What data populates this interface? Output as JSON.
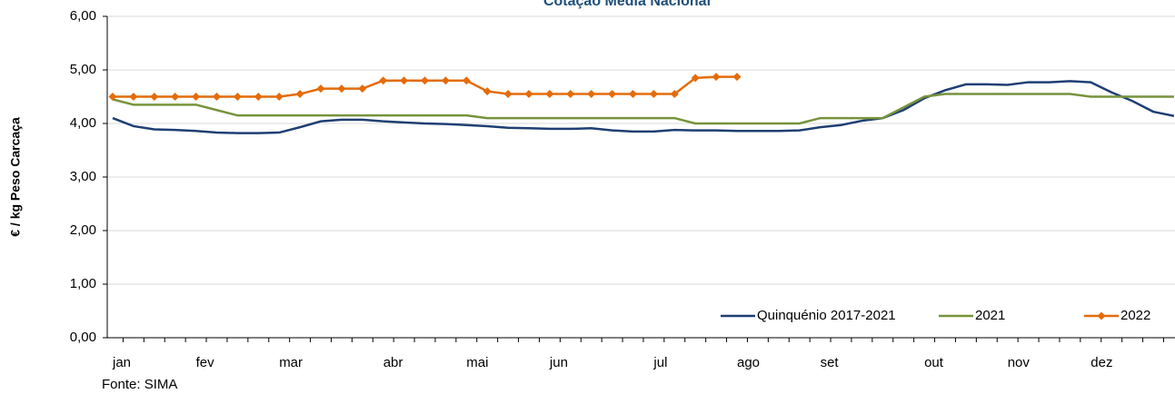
{
  "chart_data": {
    "type": "line",
    "title": "Cotação Média Nacional",
    "ylabel": "€ / kg Peso Carcaça",
    "source": "Fonte: SIMA",
    "categories": [
      "jan",
      null,
      null,
      null,
      "fev",
      null,
      null,
      null,
      "mar",
      null,
      null,
      null,
      null,
      "abr",
      null,
      null,
      null,
      "mai",
      null,
      null,
      null,
      "jun",
      null,
      null,
      null,
      null,
      "jul",
      null,
      null,
      null,
      "ago",
      null,
      null,
      null,
      "set",
      null,
      null,
      null,
      null,
      "out",
      null,
      null,
      null,
      "nov",
      null,
      null,
      null,
      "dez",
      null,
      null,
      null,
      null
    ],
    "series": [
      {
        "name": "Quinquénio 2017-2021",
        "color": "#1f3f73",
        "values": [
          4.1,
          3.95,
          3.89,
          3.88,
          3.86,
          3.83,
          3.82,
          3.82,
          3.83,
          3.93,
          4.04,
          4.07,
          4.07,
          4.04,
          4.02,
          4.0,
          3.99,
          3.97,
          3.95,
          3.92,
          3.91,
          3.9,
          3.9,
          3.91,
          3.87,
          3.85,
          3.85,
          3.88,
          3.87,
          3.87,
          3.86,
          3.86,
          3.86,
          3.87,
          3.93,
          3.97,
          4.05,
          4.1,
          4.25,
          4.47,
          4.62,
          4.73,
          4.73,
          4.72,
          4.77,
          4.77,
          4.79,
          4.77,
          4.58,
          4.42,
          4.22,
          4.14
        ]
      },
      {
        "name": "2021",
        "color": "#77933c",
        "values": [
          4.45,
          4.35,
          4.35,
          4.35,
          4.35,
          4.25,
          4.15,
          4.15,
          4.15,
          4.15,
          4.15,
          4.15,
          4.15,
          4.15,
          4.15,
          4.15,
          4.15,
          4.15,
          4.1,
          4.1,
          4.1,
          4.1,
          4.1,
          4.1,
          4.1,
          4.1,
          4.1,
          4.1,
          4.0,
          4.0,
          4.0,
          4.0,
          4.0,
          4.0,
          4.1,
          4.1,
          4.1,
          4.1,
          4.3,
          4.5,
          4.55,
          4.55,
          4.55,
          4.55,
          4.55,
          4.55,
          4.55,
          4.5,
          4.5,
          4.5,
          4.5,
          4.5
        ]
      },
      {
        "name": "2022",
        "color": "#e46c0a",
        "marker": "diamond",
        "values": [
          4.5,
          4.5,
          4.5,
          4.5,
          4.5,
          4.5,
          4.5,
          4.5,
          4.5,
          4.55,
          4.65,
          4.65,
          4.65,
          4.8,
          4.8,
          4.8,
          4.8,
          4.8,
          4.6,
          4.55,
          4.55,
          4.55,
          4.55,
          4.55,
          4.55,
          4.55,
          4.55,
          4.55,
          4.85,
          4.87,
          4.87,
          null,
          null,
          null,
          null,
          null,
          null,
          null,
          null,
          null,
          null,
          null,
          null,
          null,
          null,
          null,
          null,
          null,
          null,
          null,
          null,
          null
        ]
      }
    ],
    "ylim": [
      0,
      6
    ],
    "yticks": [
      {
        "value": 0,
        "label": "0,00"
      },
      {
        "value": 1,
        "label": "1,00"
      },
      {
        "value": 2,
        "label": "2,00"
      },
      {
        "value": 3,
        "label": "3,00"
      },
      {
        "value": 4,
        "label": "4,00"
      },
      {
        "value": 5,
        "label": "5,00"
      },
      {
        "value": 6,
        "label": "6,00"
      }
    ],
    "grid": true,
    "legend": "lower right"
  }
}
